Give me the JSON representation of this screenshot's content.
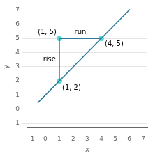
{
  "chart_data": {
    "type": "scatter",
    "xlabel": "x",
    "ylabel": "y",
    "xlim": [
      -1.3,
      7.3
    ],
    "ylim": [
      -1.3,
      7.3
    ],
    "xticks": [
      -1,
      0,
      1,
      2,
      3,
      4,
      5,
      6,
      7
    ],
    "yticks": [
      -1,
      0,
      1,
      2,
      3,
      4,
      5,
      6,
      7
    ],
    "grid": true,
    "series": [
      {
        "type": "line",
        "color": "#2e7a9a",
        "x": [
          -0.55,
          6.05
        ],
        "values": [
          0.45,
          7.05
        ]
      },
      {
        "type": "line",
        "color": "#2e7a9a",
        "x": [
          1,
          1,
          4
        ],
        "values": [
          2,
          5,
          5
        ]
      },
      {
        "type": "scatter",
        "marker": "circle",
        "color": "#55d9d9",
        "x": [
          1,
          4,
          1
        ],
        "values": [
          2,
          5,
          5
        ]
      }
    ],
    "annotations": [
      {
        "text": "(1, 2)",
        "x": 1,
        "y": 2
      },
      {
        "text": "(4, 5)",
        "x": 4,
        "y": 5
      },
      {
        "text": "(1, 5)",
        "x": 1,
        "y": 5
      },
      {
        "text": "run",
        "x": 2.5,
        "y": 5
      },
      {
        "text": "rise",
        "x": 1,
        "y": 3.5
      }
    ]
  }
}
